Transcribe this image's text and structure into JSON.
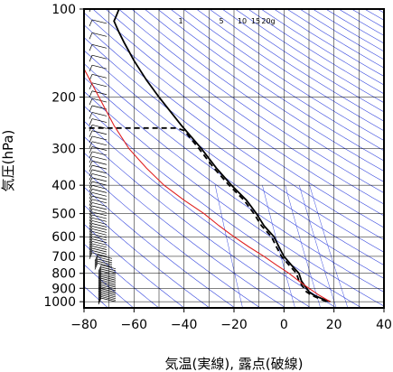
{
  "chart_data": {
    "type": "line",
    "chart_kind": "emagram",
    "xlabel": "気温(実線), 露点(破線)",
    "ylabel": "気圧(hPa)",
    "xlim": [
      -80,
      40
    ],
    "ylim": [
      1050,
      100
    ],
    "y_scale": "log",
    "grid": true,
    "x_ticks": [
      "−80",
      "−60",
      "−40",
      "−20",
      "0",
      "20",
      "40"
    ],
    "x_tick_values": [
      -80,
      -60,
      -40,
      -20,
      0,
      20,
      40
    ],
    "y_ticks": [
      "100",
      "200",
      "300",
      "400",
      "500",
      "600",
      "700",
      "800",
      "900",
      "1000"
    ],
    "y_tick_values": [
      100,
      200,
      300,
      400,
      500,
      600,
      700,
      800,
      900,
      1000
    ],
    "mixing_ratio_labels": [
      "1",
      "5",
      "10",
      "15",
      "20g"
    ],
    "mixing_ratio_values": [
      1,
      5,
      10,
      15,
      20
    ],
    "series": [
      {
        "style": "solid",
        "color": "#000000",
        "points": [
          [
            18.5,
            1000
          ],
          [
            15,
            975
          ],
          [
            12,
            950
          ],
          [
            10,
            925
          ],
          [
            8,
            875
          ],
          [
            7,
            850
          ],
          [
            6,
            800
          ],
          [
            3,
            750
          ],
          [
            0,
            700
          ],
          [
            -2,
            650
          ],
          [
            -4,
            600
          ],
          [
            -8,
            550
          ],
          [
            -11,
            500
          ],
          [
            -15,
            450
          ],
          [
            -21,
            400
          ],
          [
            -27,
            350
          ],
          [
            -33,
            300
          ],
          [
            -41,
            250
          ],
          [
            -50,
            200
          ],
          [
            -55,
            175
          ],
          [
            -60,
            150
          ],
          [
            -64,
            130
          ],
          [
            -66,
            120
          ],
          [
            -67,
            115
          ],
          [
            -68,
            110
          ],
          [
            -67,
            105
          ],
          [
            -66,
            100
          ]
        ]
      },
      {
        "style": "dashed",
        "color": "#000000",
        "points": [
          [
            17,
            1000
          ],
          [
            14,
            975
          ],
          [
            11,
            950
          ],
          [
            9,
            925
          ],
          [
            7,
            875
          ],
          [
            6,
            850
          ],
          [
            5,
            800
          ],
          [
            2,
            750
          ],
          [
            -1,
            700
          ],
          [
            -3,
            650
          ],
          [
            -5,
            600
          ],
          [
            -9,
            550
          ],
          [
            -12,
            500
          ],
          [
            -16,
            450
          ],
          [
            -22,
            400
          ],
          [
            -28,
            350
          ],
          [
            -34,
            300
          ],
          [
            -40,
            260
          ],
          [
            -43,
            255
          ],
          [
            -60,
            255
          ],
          [
            -80,
            255
          ]
        ]
      },
      {
        "style": "solid",
        "color": "#e02020",
        "points": [
          [
            18.5,
            1000
          ],
          [
            14,
            950
          ],
          [
            10,
            900
          ],
          [
            6,
            850
          ],
          [
            2,
            800
          ],
          [
            -3,
            750
          ],
          [
            -8,
            700
          ],
          [
            -14,
            650
          ],
          [
            -20,
            600
          ],
          [
            -26,
            550
          ],
          [
            -32,
            500
          ],
          [
            -40,
            450
          ],
          [
            -48,
            400
          ],
          [
            -55,
            350
          ],
          [
            -62,
            300
          ],
          [
            -68,
            250
          ],
          [
            -74,
            200
          ],
          [
            -80,
            160
          ]
        ]
      }
    ]
  }
}
